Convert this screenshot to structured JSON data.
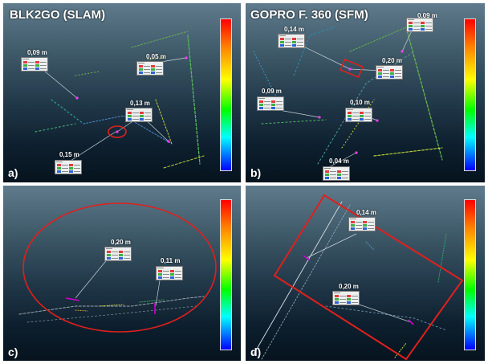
{
  "panels": [
    {
      "id": "a",
      "title": "BLK2GO (SLAM)",
      "label": "a)",
      "measurements": [
        "0,09 m",
        "0,05 m",
        "0,13 m",
        "0,15 m"
      ]
    },
    {
      "id": "b",
      "title": "GOPRO F. 360 (SFM)",
      "label": "b)",
      "measurements": [
        "0,14 m",
        "0,09 m",
        "0,20 m",
        "0,09 m",
        "0,10 m",
        "0,04 m"
      ]
    },
    {
      "id": "c",
      "title": "",
      "label": "c)",
      "measurements": [
        "0,20 m",
        "0,11 m"
      ]
    },
    {
      "id": "d",
      "title": "",
      "label": "d)",
      "measurements": [
        "0,14 m",
        "0,20 m"
      ]
    }
  ],
  "colors": {
    "highlight": "#e0201c",
    "leader": "#c9d3da",
    "point_pink": "#ff3cff"
  }
}
